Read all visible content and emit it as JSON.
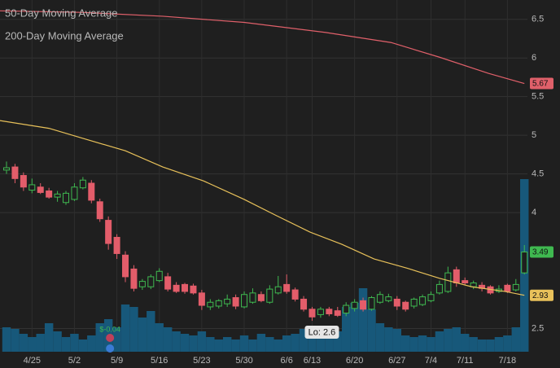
{
  "chart_data": {
    "type": "candlestick",
    "categories": [
      null,
      null,
      null,
      "4/25",
      null,
      null,
      null,
      null,
      "5/2",
      null,
      null,
      null,
      null,
      "5/9",
      null,
      null,
      null,
      null,
      "5/16",
      null,
      null,
      null,
      null,
      "5/23",
      null,
      null,
      null,
      null,
      "5/30",
      null,
      null,
      null,
      null,
      "6/6",
      null,
      null,
      "6/13",
      null,
      null,
      null,
      null,
      "6/20",
      null,
      null,
      null,
      null,
      "6/27",
      null,
      null,
      null,
      "7/4",
      null,
      null,
      null,
      "7/11",
      null,
      null,
      null,
      null,
      "7/18",
      null,
      null
    ],
    "candles": {
      "up_color": "#3fb950",
      "down_color": "#e35d6a",
      "open": [
        4.55,
        4.59,
        4.48,
        4.29,
        4.33,
        4.28,
        4.2,
        4.13,
        4.17,
        4.32,
        4.38,
        4.14,
        3.9,
        3.68,
        3.45,
        3.27,
        3.04,
        3.04,
        3.12,
        3.17,
        3.06,
        3.07,
        3.05,
        2.96,
        2.78,
        2.79,
        2.82,
        2.9,
        2.78,
        2.84,
        2.94,
        2.84,
        2.96,
        3.07,
        3.0,
        2.88,
        2.75,
        2.68,
        2.75,
        2.73,
        2.7,
        2.76,
        2.86,
        2.75,
        2.84,
        2.86,
        2.88,
        2.84,
        2.79,
        2.81,
        2.86,
        2.96,
        2.98,
        3.26,
        3.12,
        3.04,
        3.06,
        3.04,
        2.98,
        3.06,
        3.0,
        3.22
      ],
      "high": [
        4.66,
        4.63,
        4.52,
        4.44,
        4.38,
        4.32,
        4.28,
        4.28,
        4.38,
        4.46,
        4.42,
        4.18,
        3.95,
        3.72,
        3.5,
        3.32,
        3.14,
        3.2,
        3.28,
        3.22,
        3.1,
        3.09,
        3.08,
        3.0,
        2.88,
        2.88,
        2.94,
        2.94,
        2.98,
        3.02,
        2.98,
        3.06,
        3.18,
        3.2,
        3.03,
        2.92,
        2.78,
        2.78,
        2.78,
        2.78,
        2.84,
        2.88,
        2.9,
        2.92,
        2.98,
        2.95,
        2.92,
        2.86,
        2.9,
        2.94,
        2.98,
        3.12,
        3.3,
        3.3,
        3.16,
        3.12,
        3.1,
        3.06,
        3.06,
        3.08,
        3.14,
        3.58
      ],
      "low": [
        4.5,
        4.38,
        4.28,
        4.25,
        4.24,
        4.18,
        4.14,
        4.1,
        4.15,
        4.3,
        4.12,
        3.88,
        3.52,
        3.4,
        3.1,
        2.98,
        3.0,
        3.01,
        3.1,
        2.98,
        2.96,
        2.95,
        2.94,
        2.74,
        2.74,
        2.76,
        2.78,
        2.75,
        2.76,
        2.82,
        2.84,
        2.82,
        2.94,
        2.95,
        2.85,
        2.72,
        2.6,
        2.64,
        2.66,
        2.65,
        2.66,
        2.72,
        2.72,
        2.73,
        2.82,
        2.84,
        2.74,
        2.72,
        2.76,
        2.79,
        2.84,
        2.94,
        2.96,
        3.04,
        3.06,
        3.01,
        2.98,
        2.94,
        2.96,
        2.96,
        2.98,
        3.2
      ],
      "close": [
        4.58,
        4.44,
        4.33,
        4.36,
        4.26,
        4.2,
        4.24,
        4.25,
        4.33,
        4.42,
        4.16,
        3.92,
        3.6,
        3.47,
        3.17,
        3.02,
        3.11,
        3.17,
        3.24,
        3.01,
        2.98,
        2.98,
        2.96,
        2.8,
        2.84,
        2.86,
        2.88,
        2.79,
        2.94,
        2.96,
        2.86,
        3.01,
        3.04,
        2.98,
        2.88,
        2.75,
        2.65,
        2.75,
        2.69,
        2.67,
        2.8,
        2.84,
        2.75,
        2.9,
        2.94,
        2.91,
        2.79,
        2.75,
        2.88,
        2.91,
        2.94,
        3.07,
        3.22,
        3.09,
        3.09,
        3.09,
        3.02,
        2.96,
        3.01,
        2.98,
        3.07,
        3.49
      ]
    },
    "volume": {
      "axis": "y2",
      "color": "#17587a",
      "values": [
        30,
        28,
        22,
        18,
        22,
        35,
        25,
        18,
        22,
        15,
        20,
        35,
        40,
        30,
        58,
        55,
        42,
        50,
        35,
        30,
        25,
        22,
        20,
        25,
        18,
        15,
        18,
        15,
        20,
        15,
        22,
        18,
        15,
        20,
        22,
        28,
        30,
        22,
        18,
        25,
        55,
        60,
        78,
        52,
        35,
        30,
        28,
        20,
        18,
        20,
        18,
        25,
        28,
        30,
        22,
        18,
        15,
        15,
        18,
        20,
        30,
        212
      ]
    },
    "series": [
      {
        "name": "50-Day Moving Average",
        "color": "#e8c15a",
        "x": [
          -0.8,
          5,
          9,
          14,
          18.4,
          23.2,
          28,
          31.8,
          35.7,
          39.5,
          43.3,
          47.2,
          51,
          54.8,
          58.7,
          61
        ],
        "values": [
          5.19,
          5.09,
          4.96,
          4.8,
          4.59,
          4.41,
          4.17,
          3.96,
          3.75,
          3.59,
          3.4,
          3.28,
          3.15,
          3.04,
          2.98,
          2.93
        ]
      },
      {
        "name": "200-Day Moving Average",
        "color": "#e0606a",
        "x": [
          -0.8,
          8.8,
          18.4,
          28,
          37.6,
          45.3,
          51,
          56.8,
          61
        ],
        "values": [
          6.61,
          6.59,
          6.54,
          6.46,
          6.33,
          6.2,
          6.01,
          5.8,
          5.67
        ]
      }
    ],
    "annotations": [
      {
        "text": "Lo: 2.6",
        "value": 2.6,
        "index": 36
      },
      {
        "text": "$-0.04",
        "index": 12
      }
    ],
    "ylim": [
      2.2,
      6.75
    ],
    "yticks": [
      2.5,
      4,
      4.5,
      5,
      5.5,
      6,
      6.5
    ],
    "y2lim": [
      0,
      432
    ],
    "grid": true
  }
}
